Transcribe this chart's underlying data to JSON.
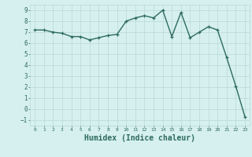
{
  "x": [
    0,
    1,
    2,
    3,
    4,
    5,
    6,
    7,
    8,
    9,
    10,
    11,
    12,
    13,
    14,
    15,
    16,
    17,
    18,
    19,
    20,
    21,
    22,
    23
  ],
  "y": [
    7.2,
    7.2,
    7.0,
    6.9,
    6.6,
    6.6,
    6.3,
    6.5,
    6.7,
    6.8,
    8.0,
    8.3,
    8.5,
    8.3,
    9.0,
    6.6,
    8.8,
    6.5,
    7.0,
    7.5,
    7.2,
    4.7,
    2.1,
    -0.7
  ],
  "line_color": "#2d6b5e",
  "marker": "+",
  "markersize": 3.5,
  "linewidth": 1.0,
  "xlabel": "Humidex (Indice chaleur)",
  "background_color": "#d6f0ef",
  "grid_color": "#b8d8d6",
  "ylim": [
    -1.5,
    9.5
  ],
  "xlim": [
    -0.5,
    23.5
  ],
  "yticks": [
    -1,
    0,
    1,
    2,
    3,
    4,
    5,
    6,
    7,
    8,
    9
  ],
  "xticks": [
    0,
    1,
    2,
    3,
    4,
    5,
    6,
    7,
    8,
    9,
    10,
    11,
    12,
    13,
    14,
    15,
    16,
    17,
    18,
    19,
    20,
    21,
    22,
    23
  ],
  "tick_fontsize": 5.5,
  "xlabel_fontsize": 7.0,
  "tick_color": "#2d6b5e",
  "label_color": "#2d6b5e"
}
